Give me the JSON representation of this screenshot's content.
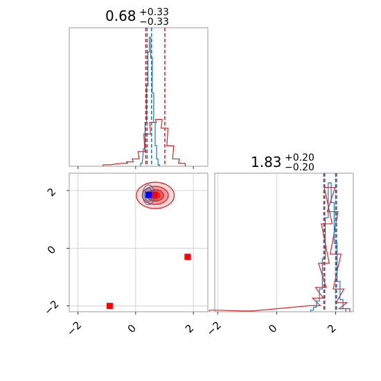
{
  "chart_data": {
    "type": "scatter",
    "kind": "corner plot",
    "parameters": [
      {
        "title_value": "0.68",
        "title_plus": "+0.33",
        "title_minus": "−0.33",
        "median": 0.68,
        "err_plus": 0.33,
        "err_minus": 0.33
      },
      {
        "title_value": "1.83",
        "title_plus": "+0.20",
        "title_minus": "−0.20",
        "median": 1.83,
        "err_plus": 0.2,
        "err_minus": 0.2
      }
    ],
    "ranges": {
      "x0": [
        -2.3,
        2.5
      ],
      "x1": [
        -2.1,
        2.6
      ],
      "y1": [
        -2.2,
        2.6
      ]
    },
    "ticks": [
      "−2",
      "0",
      "2"
    ],
    "tick_values": [
      -2,
      0,
      2
    ],
    "grid": true,
    "series": [
      {
        "color": "#1f77b4",
        "hist_x0": {
          "x": [
            0.2,
            0.3,
            0.35,
            0.4,
            0.45,
            0.5,
            0.55,
            0.6,
            0.65,
            0.7,
            0.75,
            0.8
          ],
          "density": [
            0.02,
            0.12,
            0.3,
            0.55,
            0.78,
            0.88,
            0.74,
            0.5,
            0.3,
            0.14,
            0.05,
            0.01
          ]
        },
        "hist_x1": {
          "x": [
            1.2,
            1.3,
            1.4,
            1.5,
            1.6,
            1.7,
            1.8,
            1.9,
            2.0,
            2.1,
            2.2,
            2.3
          ],
          "density": [
            0.01,
            0.03,
            0.07,
            0.15,
            0.35,
            0.62,
            0.85,
            0.72,
            0.45,
            0.2,
            0.08,
            0.02
          ]
        },
        "quantile_lines_x0": [
          0.4,
          0.55
        ],
        "quantile_lines_x1": [
          1.6,
          2.0
        ],
        "peak_marker": [
          0.45,
          1.85
        ]
      },
      {
        "color": "#d62728",
        "hist_x0": {
          "x": [
            -1.0,
            -0.4,
            -0.2,
            0.0,
            0.2,
            0.4,
            0.6,
            0.8,
            1.0,
            1.2,
            1.4,
            1.6
          ],
          "density": [
            0.01,
            0.02,
            0.03,
            0.05,
            0.1,
            0.22,
            0.3,
            0.32,
            0.26,
            0.14,
            0.05,
            0.02
          ]
        },
        "hist_x1": {
          "x": [
            -2.1,
            -1.0,
            1.3,
            1.4,
            1.5,
            1.6,
            1.7,
            1.8,
            1.9,
            2.0,
            2.1,
            2.2,
            2.3
          ],
          "density": [
            0.01,
            0.005,
            0.04,
            0.09,
            0.16,
            0.32,
            0.58,
            0.82,
            0.66,
            0.38,
            0.15,
            0.06,
            0.02
          ]
        },
        "quantile_lines_x0": [
          0.35,
          1.01
        ],
        "quantile_lines_x1": [
          1.63,
          2.03
        ],
        "contour_center": [
          0.68,
          1.83
        ],
        "contour_radii": [
          0.8,
          0.55,
          0.35,
          0.2
        ],
        "outlier_markers": [
          [
            1.8,
            -0.3
          ],
          [
            -0.9,
            -2.0
          ]
        ],
        "peak_marker": [
          0.65,
          1.85
        ]
      }
    ]
  }
}
